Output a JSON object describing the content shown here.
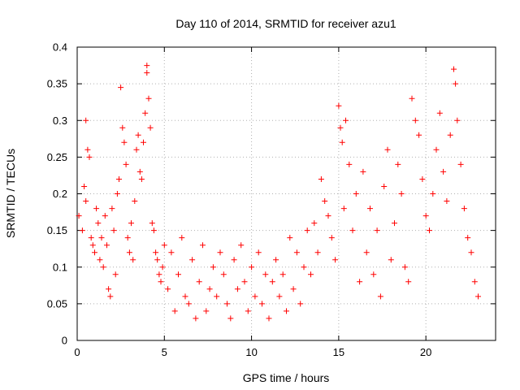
{
  "chart_data": {
    "type": "scatter",
    "title": "Day 110 of 2014, SRMTID for receiver azu1",
    "xlabel": "GPS time / hours",
    "ylabel": "SRMTID / TECUs",
    "xlim": [
      0,
      24
    ],
    "ylim": [
      0,
      0.4
    ],
    "xticks": [
      0,
      5,
      10,
      15,
      20
    ],
    "xtick_labels": [
      "0",
      "5",
      "10",
      "15",
      "20"
    ],
    "yticks": [
      0,
      0.05,
      0.1,
      0.15,
      0.2,
      0.25,
      0.3,
      0.35,
      0.4
    ],
    "ytick_labels": [
      "0",
      "0.05",
      "0.1",
      "0.15",
      "0.2",
      "0.25",
      "0.3",
      "0.35",
      "0.4"
    ],
    "grid": true,
    "marker": "plus",
    "color": "#ff0000",
    "series": [
      {
        "name": "SRMTID",
        "points": [
          [
            0.1,
            0.17
          ],
          [
            0.3,
            0.15
          ],
          [
            0.4,
            0.21
          ],
          [
            0.5,
            0.19
          ],
          [
            0.5,
            0.3
          ],
          [
            0.6,
            0.26
          ],
          [
            0.7,
            0.25
          ],
          [
            0.8,
            0.14
          ],
          [
            0.9,
            0.13
          ],
          [
            1.0,
            0.12
          ],
          [
            1.1,
            0.18
          ],
          [
            1.2,
            0.16
          ],
          [
            1.3,
            0.11
          ],
          [
            1.4,
            0.14
          ],
          [
            1.5,
            0.1
          ],
          [
            1.6,
            0.17
          ],
          [
            1.7,
            0.13
          ],
          [
            1.8,
            0.07
          ],
          [
            1.9,
            0.06
          ],
          [
            2.0,
            0.18
          ],
          [
            2.1,
            0.15
          ],
          [
            2.2,
            0.09
          ],
          [
            2.3,
            0.2
          ],
          [
            2.4,
            0.22
          ],
          [
            2.5,
            0.345
          ],
          [
            2.6,
            0.29
          ],
          [
            2.7,
            0.27
          ],
          [
            2.8,
            0.24
          ],
          [
            2.9,
            0.14
          ],
          [
            3.0,
            0.12
          ],
          [
            3.1,
            0.16
          ],
          [
            3.2,
            0.11
          ],
          [
            3.3,
            0.19
          ],
          [
            3.4,
            0.26
          ],
          [
            3.5,
            0.28
          ],
          [
            3.6,
            0.23
          ],
          [
            3.7,
            0.22
          ],
          [
            3.8,
            0.27
          ],
          [
            3.9,
            0.31
          ],
          [
            4.0,
            0.375
          ],
          [
            4.0,
            0.365
          ],
          [
            4.1,
            0.33
          ],
          [
            4.2,
            0.29
          ],
          [
            4.3,
            0.16
          ],
          [
            4.4,
            0.15
          ],
          [
            4.5,
            0.12
          ],
          [
            4.6,
            0.11
          ],
          [
            4.7,
            0.09
          ],
          [
            4.8,
            0.08
          ],
          [
            4.9,
            0.1
          ],
          [
            5.0,
            0.13
          ],
          [
            5.2,
            0.07
          ],
          [
            5.4,
            0.12
          ],
          [
            5.6,
            0.04
          ],
          [
            5.8,
            0.09
          ],
          [
            6.0,
            0.14
          ],
          [
            6.2,
            0.06
          ],
          [
            6.4,
            0.05
          ],
          [
            6.6,
            0.11
          ],
          [
            6.8,
            0.03
          ],
          [
            7.0,
            0.08
          ],
          [
            7.2,
            0.13
          ],
          [
            7.4,
            0.04
          ],
          [
            7.6,
            0.07
          ],
          [
            7.8,
            0.1
          ],
          [
            8.0,
            0.06
          ],
          [
            8.2,
            0.12
          ],
          [
            8.4,
            0.09
          ],
          [
            8.6,
            0.05
          ],
          [
            8.8,
            0.03
          ],
          [
            9.0,
            0.11
          ],
          [
            9.2,
            0.07
          ],
          [
            9.4,
            0.13
          ],
          [
            9.6,
            0.08
          ],
          [
            9.8,
            0.04
          ],
          [
            10.0,
            0.1
          ],
          [
            10.2,
            0.06
          ],
          [
            10.4,
            0.12
          ],
          [
            10.6,
            0.05
          ],
          [
            10.8,
            0.09
          ],
          [
            11.0,
            0.03
          ],
          [
            11.2,
            0.08
          ],
          [
            11.4,
            0.11
          ],
          [
            11.6,
            0.06
          ],
          [
            11.8,
            0.09
          ],
          [
            12.0,
            0.04
          ],
          [
            12.2,
            0.14
          ],
          [
            12.4,
            0.07
          ],
          [
            12.6,
            0.12
          ],
          [
            12.8,
            0.05
          ],
          [
            13.0,
            0.1
          ],
          [
            13.2,
            0.15
          ],
          [
            13.4,
            0.09
          ],
          [
            13.6,
            0.16
          ],
          [
            13.8,
            0.12
          ],
          [
            14.0,
            0.22
          ],
          [
            14.2,
            0.19
          ],
          [
            14.4,
            0.17
          ],
          [
            14.6,
            0.14
          ],
          [
            14.8,
            0.11
          ],
          [
            15.0,
            0.32
          ],
          [
            15.1,
            0.29
          ],
          [
            15.2,
            0.27
          ],
          [
            15.3,
            0.18
          ],
          [
            15.4,
            0.3
          ],
          [
            15.6,
            0.24
          ],
          [
            15.8,
            0.15
          ],
          [
            16.0,
            0.2
          ],
          [
            16.2,
            0.08
          ],
          [
            16.4,
            0.23
          ],
          [
            16.6,
            0.12
          ],
          [
            16.8,
            0.18
          ],
          [
            17.0,
            0.09
          ],
          [
            17.2,
            0.15
          ],
          [
            17.4,
            0.06
          ],
          [
            17.6,
            0.21
          ],
          [
            17.8,
            0.26
          ],
          [
            18.0,
            0.11
          ],
          [
            18.2,
            0.16
          ],
          [
            18.4,
            0.24
          ],
          [
            18.6,
            0.2
          ],
          [
            18.8,
            0.1
          ],
          [
            19.0,
            0.08
          ],
          [
            19.2,
            0.33
          ],
          [
            19.4,
            0.3
          ],
          [
            19.6,
            0.28
          ],
          [
            19.8,
            0.22
          ],
          [
            20.0,
            0.17
          ],
          [
            20.2,
            0.15
          ],
          [
            20.4,
            0.2
          ],
          [
            20.6,
            0.26
          ],
          [
            20.8,
            0.31
          ],
          [
            21.0,
            0.23
          ],
          [
            21.2,
            0.19
          ],
          [
            21.4,
            0.28
          ],
          [
            21.6,
            0.37
          ],
          [
            21.7,
            0.35
          ],
          [
            21.8,
            0.3
          ],
          [
            22.0,
            0.24
          ],
          [
            22.2,
            0.18
          ],
          [
            22.4,
            0.14
          ],
          [
            22.6,
            0.12
          ],
          [
            22.8,
            0.08
          ],
          [
            23.0,
            0.06
          ]
        ]
      }
    ]
  }
}
